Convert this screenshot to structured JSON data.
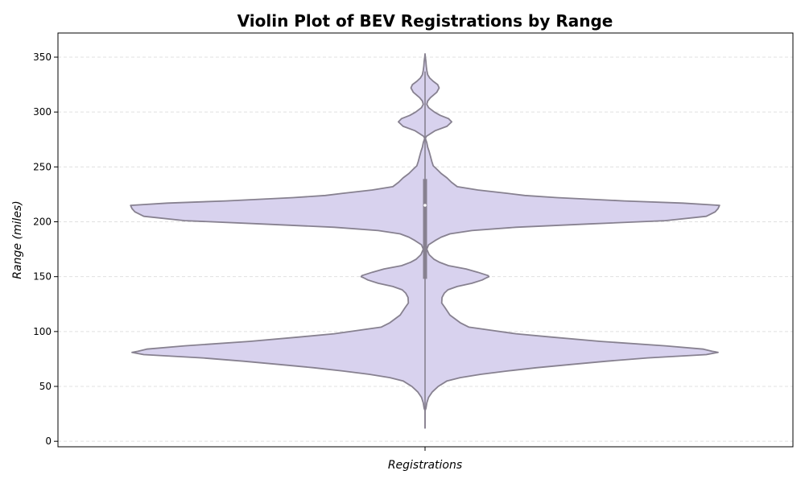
{
  "chart_data": {
    "type": "violin",
    "title": "Violin Plot of BEV Registrations by Range",
    "xlabel": "Registrations",
    "ylabel": "Range (miles)",
    "ylim": [
      -5,
      372
    ],
    "yticks": [
      0,
      50,
      100,
      150,
      200,
      250,
      300,
      350
    ],
    "grid": {
      "y": true,
      "style": "dashed"
    },
    "colors": {
      "fill": "#d8d2ee",
      "edge": "#878190",
      "box": "#878190",
      "median": "#ffffff",
      "grid": "#e0e0e0"
    },
    "density_profile": [
      [
        12,
        0.0
      ],
      [
        28,
        0.0
      ],
      [
        30,
        0.003
      ],
      [
        35,
        0.006
      ],
      [
        40,
        0.012
      ],
      [
        45,
        0.025
      ],
      [
        50,
        0.045
      ],
      [
        55,
        0.075
      ],
      [
        58,
        0.12
      ],
      [
        61,
        0.19
      ],
      [
        64,
        0.28
      ],
      [
        67,
        0.38
      ],
      [
        70,
        0.5
      ],
      [
        73,
        0.62
      ],
      [
        76,
        0.76
      ],
      [
        79,
        0.96
      ],
      [
        81,
        1.0
      ],
      [
        82,
        0.98
      ],
      [
        84,
        0.95
      ],
      [
        87,
        0.82
      ],
      [
        91,
        0.6
      ],
      [
        95,
        0.43
      ],
      [
        98,
        0.31
      ],
      [
        101,
        0.23
      ],
      [
        104,
        0.15
      ],
      [
        108,
        0.12
      ],
      [
        115,
        0.085
      ],
      [
        121,
        0.07
      ],
      [
        126,
        0.057
      ],
      [
        131,
        0.058
      ],
      [
        135,
        0.066
      ],
      [
        138,
        0.078
      ],
      [
        141,
        0.11
      ],
      [
        144,
        0.16
      ],
      [
        147,
        0.195
      ],
      [
        149,
        0.21
      ],
      [
        150,
        0.218
      ],
      [
        151,
        0.215
      ],
      [
        154,
        0.18
      ],
      [
        157,
        0.14
      ],
      [
        160,
        0.08
      ],
      [
        163,
        0.05
      ],
      [
        166,
        0.03
      ],
      [
        170,
        0.014
      ],
      [
        175,
        0.006
      ],
      [
        179,
        0.012
      ],
      [
        183,
        0.035
      ],
      [
        186,
        0.055
      ],
      [
        189,
        0.085
      ],
      [
        192,
        0.16
      ],
      [
        195,
        0.31
      ],
      [
        198,
        0.56
      ],
      [
        201,
        0.82
      ],
      [
        205,
        0.96
      ],
      [
        209,
        0.99
      ],
      [
        212,
        1.0
      ],
      [
        215,
        1.005
      ],
      [
        217,
        0.88
      ],
      [
        219,
        0.68
      ],
      [
        222,
        0.45
      ],
      [
        224,
        0.34
      ],
      [
        226,
        0.28
      ],
      [
        229,
        0.18
      ],
      [
        232,
        0.11
      ],
      [
        236,
        0.09
      ],
      [
        240,
        0.075
      ],
      [
        244,
        0.055
      ],
      [
        248,
        0.04
      ],
      [
        251,
        0.028
      ],
      [
        255,
        0.023
      ],
      [
        260,
        0.018
      ],
      [
        264,
        0.014
      ],
      [
        268,
        0.009
      ],
      [
        272,
        0.006
      ],
      [
        276,
        0.001
      ],
      [
        278,
        0.005
      ],
      [
        283,
        0.035
      ],
      [
        287,
        0.075
      ],
      [
        291,
        0.091
      ],
      [
        294,
        0.08
      ],
      [
        297,
        0.052
      ],
      [
        300,
        0.032
      ],
      [
        304,
        0.012
      ],
      [
        307,
        0.006
      ],
      [
        310,
        0.009
      ],
      [
        313,
        0.018
      ],
      [
        318,
        0.04
      ],
      [
        322,
        0.048
      ],
      [
        325,
        0.043
      ],
      [
        328,
        0.028
      ],
      [
        331,
        0.016
      ],
      [
        334,
        0.009
      ],
      [
        338,
        0.006
      ],
      [
        342,
        0.004
      ],
      [
        346,
        0.003
      ],
      [
        350,
        0.001
      ],
      [
        353,
        0.0
      ]
    ],
    "box": {
      "q1": 148,
      "median": 215,
      "q3": 239,
      "whisker_low": 12,
      "whisker_high": 337
    }
  }
}
